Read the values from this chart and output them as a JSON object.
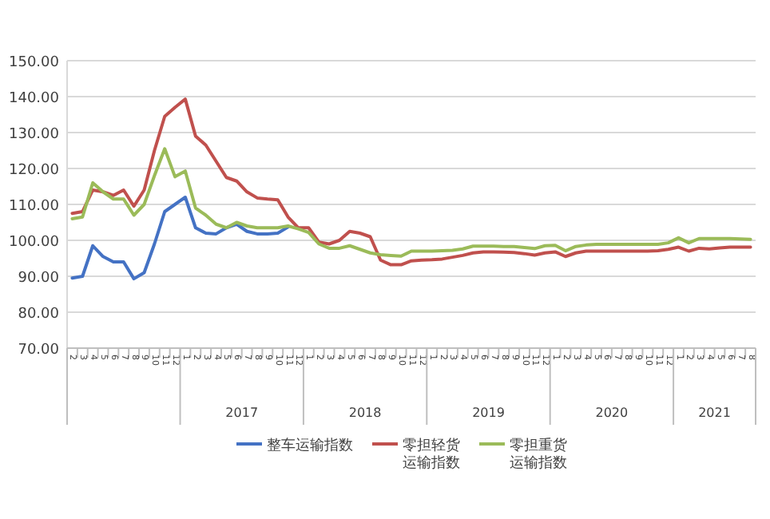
{
  "chart_data": {
    "type": "line",
    "categories": [
      "2",
      "3",
      "4",
      "5",
      "6",
      "7",
      "8",
      "9",
      "10",
      "11",
      "12",
      "1",
      "2",
      "3",
      "4",
      "5",
      "6",
      "7",
      "8",
      "9",
      "10",
      "11",
      "12",
      "1",
      "2",
      "3",
      "4",
      "5",
      "6",
      "7",
      "8",
      "9",
      "10",
      "11",
      "12",
      "1",
      "2",
      "3",
      "4",
      "5",
      "6",
      "7",
      "8",
      "9",
      "10",
      "11",
      "12",
      "1",
      "2",
      "3",
      "4",
      "5",
      "6",
      "7",
      "8",
      "9",
      "10",
      "11",
      "12",
      "1",
      "2",
      "3",
      "4",
      "5",
      "6",
      "7",
      "8"
    ],
    "annotations": [
      "2017",
      "2018",
      "2019",
      "2020",
      "2021"
    ],
    "series": [
      {
        "name": "整车运输指数",
        "color": "#4472c4",
        "values": [
          89.5,
          90,
          98.5,
          95.5,
          94,
          94,
          89.3,
          91,
          99,
          108,
          110,
          112,
          103.5,
          102,
          101.8,
          103.5,
          104.5,
          102.5,
          101.8,
          101.8,
          102,
          103.7,
          null,
          null,
          null,
          null,
          null,
          null,
          null,
          null,
          null,
          null,
          null,
          null,
          null,
          null,
          null,
          null,
          null,
          null,
          null,
          null,
          null,
          null,
          null,
          null,
          null,
          null,
          null,
          null,
          null,
          null,
          null,
          null,
          null,
          null,
          null,
          null,
          null,
          null,
          null,
          null,
          null,
          null,
          null,
          null,
          null
        ]
      },
      {
        "name": "零担轻货运输指数",
        "color": "#c0504d",
        "values": [
          107.5,
          108,
          114,
          113.5,
          112.5,
          114,
          109.5,
          114,
          125,
          134.5,
          137,
          139.3,
          129,
          126.5,
          122,
          117.5,
          116.5,
          113.5,
          111.8,
          111.5,
          111.3,
          106.5,
          103.5,
          103.5,
          99.5,
          99,
          100,
          102.5,
          102,
          101,
          94.5,
          93.2,
          93.2,
          94.3,
          94.5,
          94.6,
          94.8,
          95.3,
          95.8,
          96.5,
          96.8,
          96.8,
          96.7,
          96.6,
          96.3,
          95.9,
          96.5,
          96.8,
          95.5,
          96.5,
          97,
          97,
          97,
          97,
          97,
          97,
          97,
          97.1,
          97.5,
          98.1,
          97,
          97.8,
          97.6,
          97.9,
          98.1,
          98.1,
          98.1
        ]
      },
      {
        "name": "零担重货运输指数",
        "color": "#9bbb59",
        "values": [
          106,
          106.5,
          116,
          113.5,
          111.5,
          111.5,
          107,
          110,
          118,
          125.5,
          117.7,
          119.3,
          109,
          107,
          104.5,
          103.5,
          105,
          104,
          103.5,
          103.5,
          103.5,
          104,
          103.2,
          102.2,
          99,
          97.8,
          97.8,
          98.5,
          97.5,
          96.5,
          96,
          95.8,
          95.6,
          97,
          97,
          97,
          97.1,
          97.2,
          97.6,
          98.4,
          98.4,
          98.4,
          98.3,
          98.3,
          98,
          97.7,
          98.5,
          98.6,
          97.1,
          98.3,
          98.7,
          98.9,
          98.9,
          98.9,
          98.9,
          98.9,
          98.9,
          98.9,
          99.3,
          100.7,
          99.3,
          100.5,
          100.5,
          100.5,
          100.5,
          100.4,
          100.3
        ]
      }
    ],
    "ylim": [
      70,
      150
    ],
    "yticks": [
      {
        "value": 70,
        "label": "70.00"
      },
      {
        "value": 80,
        "label": "80.00"
      },
      {
        "value": 90,
        "label": "90.00"
      },
      {
        "value": 100,
        "label": "100.00"
      },
      {
        "value": 110,
        "label": "110.00"
      },
      {
        "value": 120,
        "label": "120.00"
      },
      {
        "value": 130,
        "label": "130.00"
      },
      {
        "value": 140,
        "label": "140.00"
      },
      {
        "value": 150,
        "label": "150.00"
      }
    ],
    "grid": "y",
    "legend": "bottom",
    "marker": "none",
    "line_style": "solid"
  }
}
